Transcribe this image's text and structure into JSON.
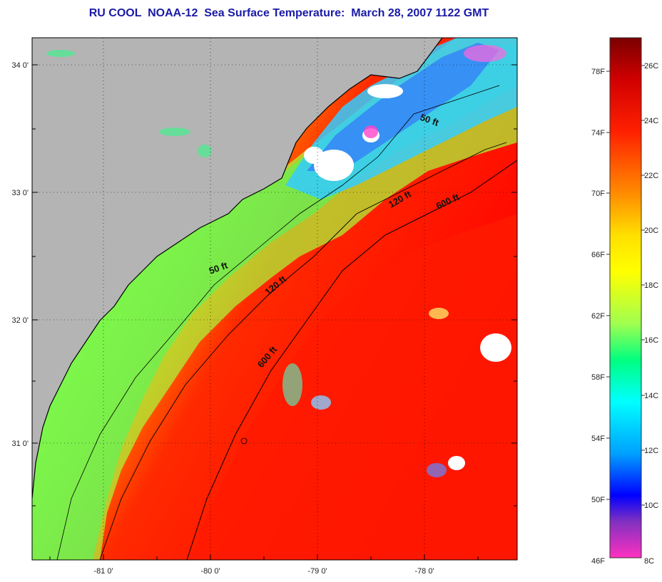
{
  "title": "RU COOL  NOAA-12  Sea Surface Temperature:  March 28, 2007 1122 GMT",
  "lat_labels": [
    "34 0'",
    "33 0'",
    "32 0'",
    "31 0'"
  ],
  "lon_labels": [
    "-81 0'",
    "-80 0'",
    "-79 0'",
    "-78 0'"
  ],
  "contour_labels": {
    "c50_north": "50 ft",
    "c50_south": "50 ft",
    "c120_north": "120 ft",
    "c120_south": "120 ft",
    "c600_north": "600 ft",
    "c600_south": "600 ft"
  },
  "colorbar": {
    "fahrenheit": [
      "78F",
      "74F",
      "70F",
      "66F",
      "62F",
      "58F",
      "54F",
      "50F",
      "46F"
    ],
    "celsius": [
      "26C",
      "24C",
      "22C",
      "20C",
      "18C",
      "16C",
      "14C",
      "12C",
      "10C",
      "8C"
    ],
    "colors": [
      "#8b0000",
      "#ff0000",
      "#ff8c00",
      "#ffff00",
      "#00ffff",
      "#0000ff",
      "#7b2cbf",
      "#ff1493"
    ]
  }
}
